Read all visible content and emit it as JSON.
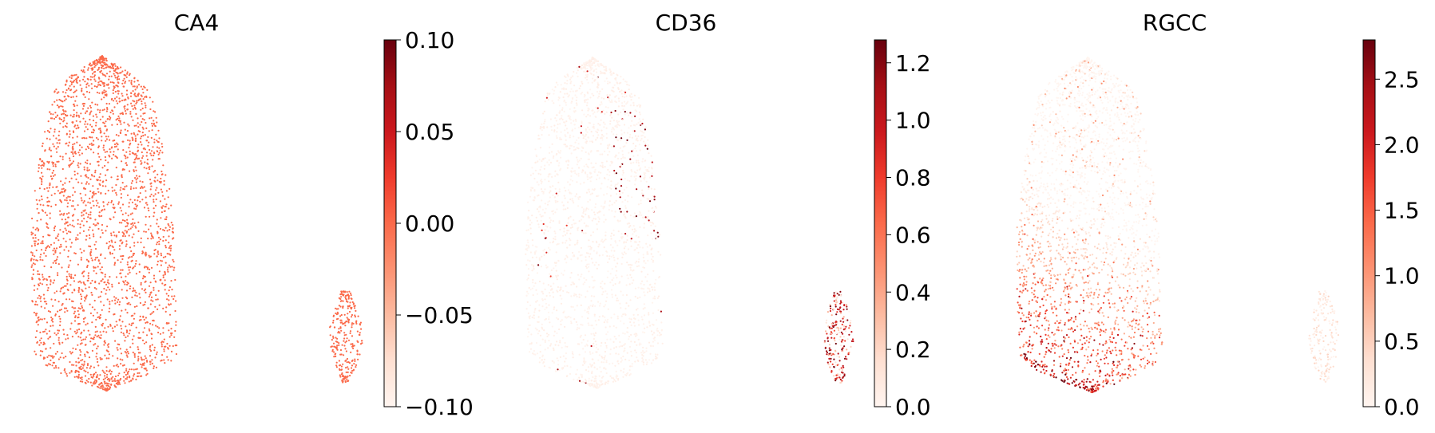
{
  "chart_data": [
    {
      "type": "scatter",
      "title": "CA4",
      "xlabel": "",
      "ylabel": "",
      "colormap": "Reds",
      "colorbar": {
        "vmin": -0.1,
        "vmax": 0.1,
        "ticks": [
          -0.1,
          -0.05,
          0.0,
          0.05,
          0.1
        ],
        "tick_labels": [
          "−0.10",
          "−0.05",
          "0.00",
          "0.05",
          "0.10"
        ]
      },
      "uniform_value": 0.0,
      "grid": false
    },
    {
      "type": "scatter",
      "title": "CD36",
      "xlabel": "",
      "ylabel": "",
      "colormap": "Reds",
      "colorbar": {
        "vmin": 0.0,
        "vmax": 1.28,
        "ticks": [
          0.0,
          0.2,
          0.4,
          0.6,
          0.8,
          1.0,
          1.2
        ],
        "tick_labels": [
          "0.0",
          "0.2",
          "0.4",
          "0.6",
          "0.8",
          "1.0",
          "1.2"
        ]
      },
      "grid": false
    },
    {
      "type": "scatter",
      "title": "RGCC",
      "xlabel": "",
      "ylabel": "",
      "colormap": "Reds",
      "colorbar": {
        "vmin": 0.0,
        "vmax": 2.8,
        "ticks": [
          0.0,
          0.5,
          1.0,
          1.5,
          2.0,
          2.5
        ],
        "tick_labels": [
          "0.0",
          "0.5",
          "1.0",
          "1.5",
          "2.0",
          "2.5"
        ]
      },
      "grid": false
    }
  ]
}
